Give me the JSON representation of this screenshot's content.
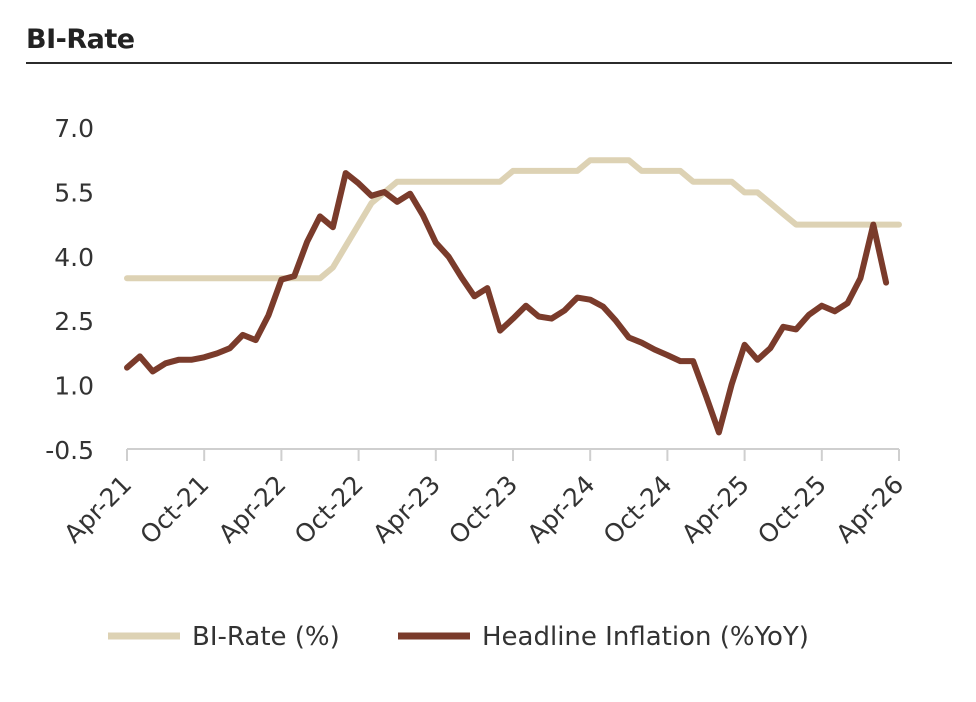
{
  "title": "BI-Rate",
  "chart_data": {
    "type": "line",
    "title": "BI-Rate",
    "xlabel": "",
    "ylabel": "",
    "ylim": [
      -0.5,
      7.0
    ],
    "yticks": [
      "7.0",
      "5.5",
      "4.0",
      "2.5",
      "1.0",
      "-0.5"
    ],
    "ytick_values": [
      7.0,
      5.5,
      4.0,
      2.5,
      1.0,
      -0.5
    ],
    "xtick_labels": [
      "Apr-21",
      "Oct-21",
      "Apr-22",
      "Oct-22",
      "Apr-23",
      "Oct-23",
      "Apr-24",
      "Oct-24",
      "Apr-25",
      "Oct-25",
      "Apr-26"
    ],
    "legend_position": "bottom",
    "series": [
      {
        "name": "BI-Rate (%)",
        "color": "#ddd2b4",
        "values": [
          3.5,
          3.5,
          3.5,
          3.5,
          3.5,
          3.5,
          3.5,
          3.5,
          3.5,
          3.5,
          3.5,
          3.5,
          3.5,
          3.5,
          3.5,
          3.5,
          3.75,
          4.25,
          4.75,
          5.25,
          5.5,
          5.75,
          5.75,
          5.75,
          5.75,
          5.75,
          5.75,
          5.75,
          5.75,
          5.75,
          6.0,
          6.0,
          6.0,
          6.0,
          6.0,
          6.0,
          6.25,
          6.25,
          6.25,
          6.25,
          6.0,
          6.0,
          6.0,
          6.0,
          5.75,
          5.75,
          5.75,
          5.75,
          5.5,
          5.5,
          5.25,
          5.0,
          4.75,
          4.75,
          4.75,
          4.75,
          4.75,
          4.75,
          4.75,
          4.75,
          4.75
        ]
      },
      {
        "name": "Headline Inflation (%YoY)",
        "color": "#7a3b2b",
        "values": [
          1.42,
          1.68,
          1.33,
          1.52,
          1.6,
          1.6,
          1.66,
          1.75,
          1.87,
          2.18,
          2.06,
          2.64,
          3.47,
          3.55,
          4.35,
          4.94,
          4.69,
          5.95,
          5.71,
          5.42,
          5.51,
          5.28,
          5.47,
          4.97,
          4.33,
          4.0,
          3.52,
          3.08,
          3.27,
          2.28,
          2.56,
          2.86,
          2.61,
          2.56,
          2.75,
          3.05,
          3.0,
          2.84,
          2.51,
          2.12,
          2.0,
          1.84,
          1.71,
          1.57,
          1.57,
          0.76,
          -0.09,
          1.03,
          1.95,
          1.6,
          1.87,
          2.37,
          2.31,
          2.65,
          2.86,
          2.73,
          2.92,
          3.5,
          4.75,
          3.4
        ]
      }
    ]
  }
}
